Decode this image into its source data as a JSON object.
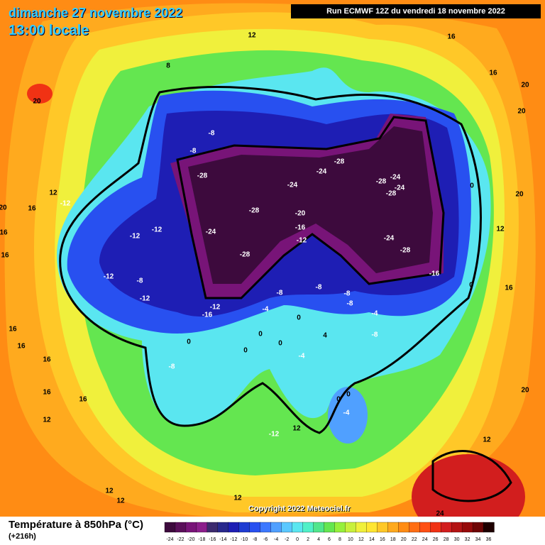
{
  "header": {
    "date": "dimanche 27 novembre 2022",
    "time": "13:00 locale",
    "run": "Run ECMWF 12Z du vendredi 18 novembre 2022"
  },
  "copyright": "Copyright 2022 Meteociel.fr",
  "legend": {
    "title": "Température à 850hPa (°C)",
    "lead_time": "(+216h)",
    "ticks": [
      -24,
      -22,
      -20,
      -18,
      -16,
      -14,
      -12,
      -10,
      -8,
      -6,
      -4,
      -2,
      0,
      2,
      4,
      6,
      8,
      10,
      12,
      14,
      16,
      18,
      20,
      22,
      24,
      26,
      28,
      30,
      32,
      34,
      36
    ],
    "colors": [
      "#3d0a3d",
      "#5a0f5a",
      "#781478",
      "#8c1e8c",
      "#3c2a6e",
      "#28288c",
      "#1e1eb4",
      "#1e3cd2",
      "#2850f0",
      "#3c78ff",
      "#50a0ff",
      "#5ac8ff",
      "#5ae6f0",
      "#50f0c8",
      "#50e68c",
      "#64e650",
      "#96f03c",
      "#c8f03c",
      "#f0f03c",
      "#ffe632",
      "#ffc828",
      "#ffaa1e",
      "#ff8c14",
      "#ff6e14",
      "#ff5014",
      "#f03214",
      "#d21e1e",
      "#b41414",
      "#960a0a",
      "#6e0505",
      "#1e0000"
    ]
  },
  "contour_labels": [
    12,
    8,
    16,
    16,
    20,
    20,
    20,
    -8,
    -8,
    -28,
    -24,
    -28,
    -24,
    -28,
    -24,
    -24,
    -28,
    0,
    20,
    20,
    16,
    12,
    -12,
    -28,
    -20,
    -16,
    -24,
    -12,
    -12,
    16,
    -12,
    -24,
    -28,
    -28,
    12,
    16,
    -12,
    -8,
    -12,
    -16,
    0,
    16,
    -8,
    -8,
    -8,
    -8,
    -12,
    -16,
    -4,
    -4,
    16,
    16,
    0,
    0,
    -8,
    0,
    0,
    0,
    -4,
    4,
    16,
    -8,
    0,
    16,
    16,
    0,
    -4,
    12,
    -12,
    12,
    12,
    12,
    12,
    12,
    24,
    20
  ]
}
